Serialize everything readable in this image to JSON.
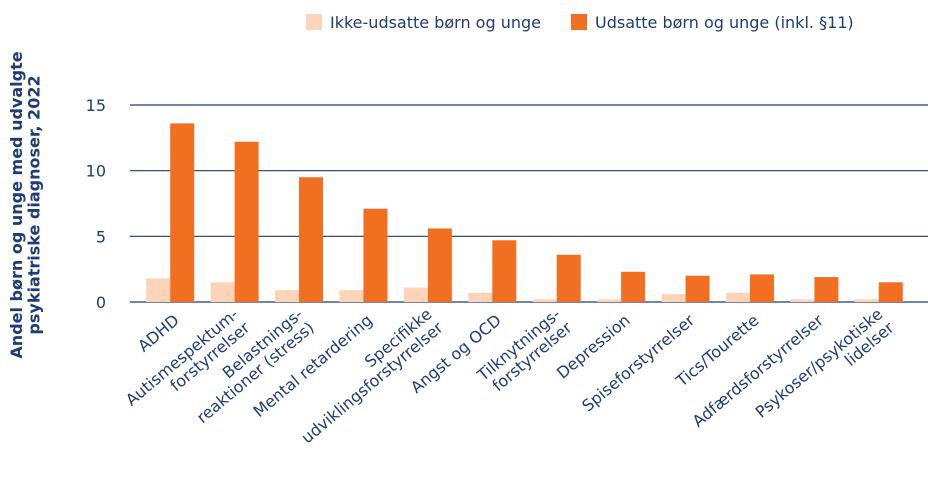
{
  "chart_data": {
    "type": "bar",
    "y_label": "Andel børn og unge med udvalgte\npsykiatriske diagnoser, 2022",
    "categories": [
      "ADHD",
      "Autismespektum-\nforstyrrelser",
      "Belastnings-\nreaktioner (stress)",
      "Mental retardering",
      "Specifikke\nudviklingsforstyrrelser",
      "Angst og OCD",
      "Tilknytnings-\nforstyrrelser",
      "Depression",
      "Spiseforstyrrelser",
      "Tics/Tourette",
      "Adfærdsforstyrrelser",
      "Psykoser/psykotiske\nlidelser"
    ],
    "series": [
      {
        "name": "Ikke-udsatte børn og unge",
        "color": "#fdd4b7",
        "values": [
          1.8,
          1.5,
          0.9,
          0.9,
          1.1,
          0.7,
          0.2,
          0.2,
          0.6,
          0.7,
          0.2,
          0.2
        ]
      },
      {
        "name": "Udsatte børn og unge (inkl. §11)",
        "color": "#f26f21",
        "values": [
          13.6,
          12.2,
          9.5,
          7.1,
          5.6,
          4.7,
          3.6,
          2.3,
          2.0,
          2.1,
          1.9,
          1.5
        ]
      }
    ],
    "ylim": [
      0,
      15
    ],
    "yticks": [
      0,
      5,
      10,
      15
    ],
    "grid": true,
    "legend": "top"
  }
}
